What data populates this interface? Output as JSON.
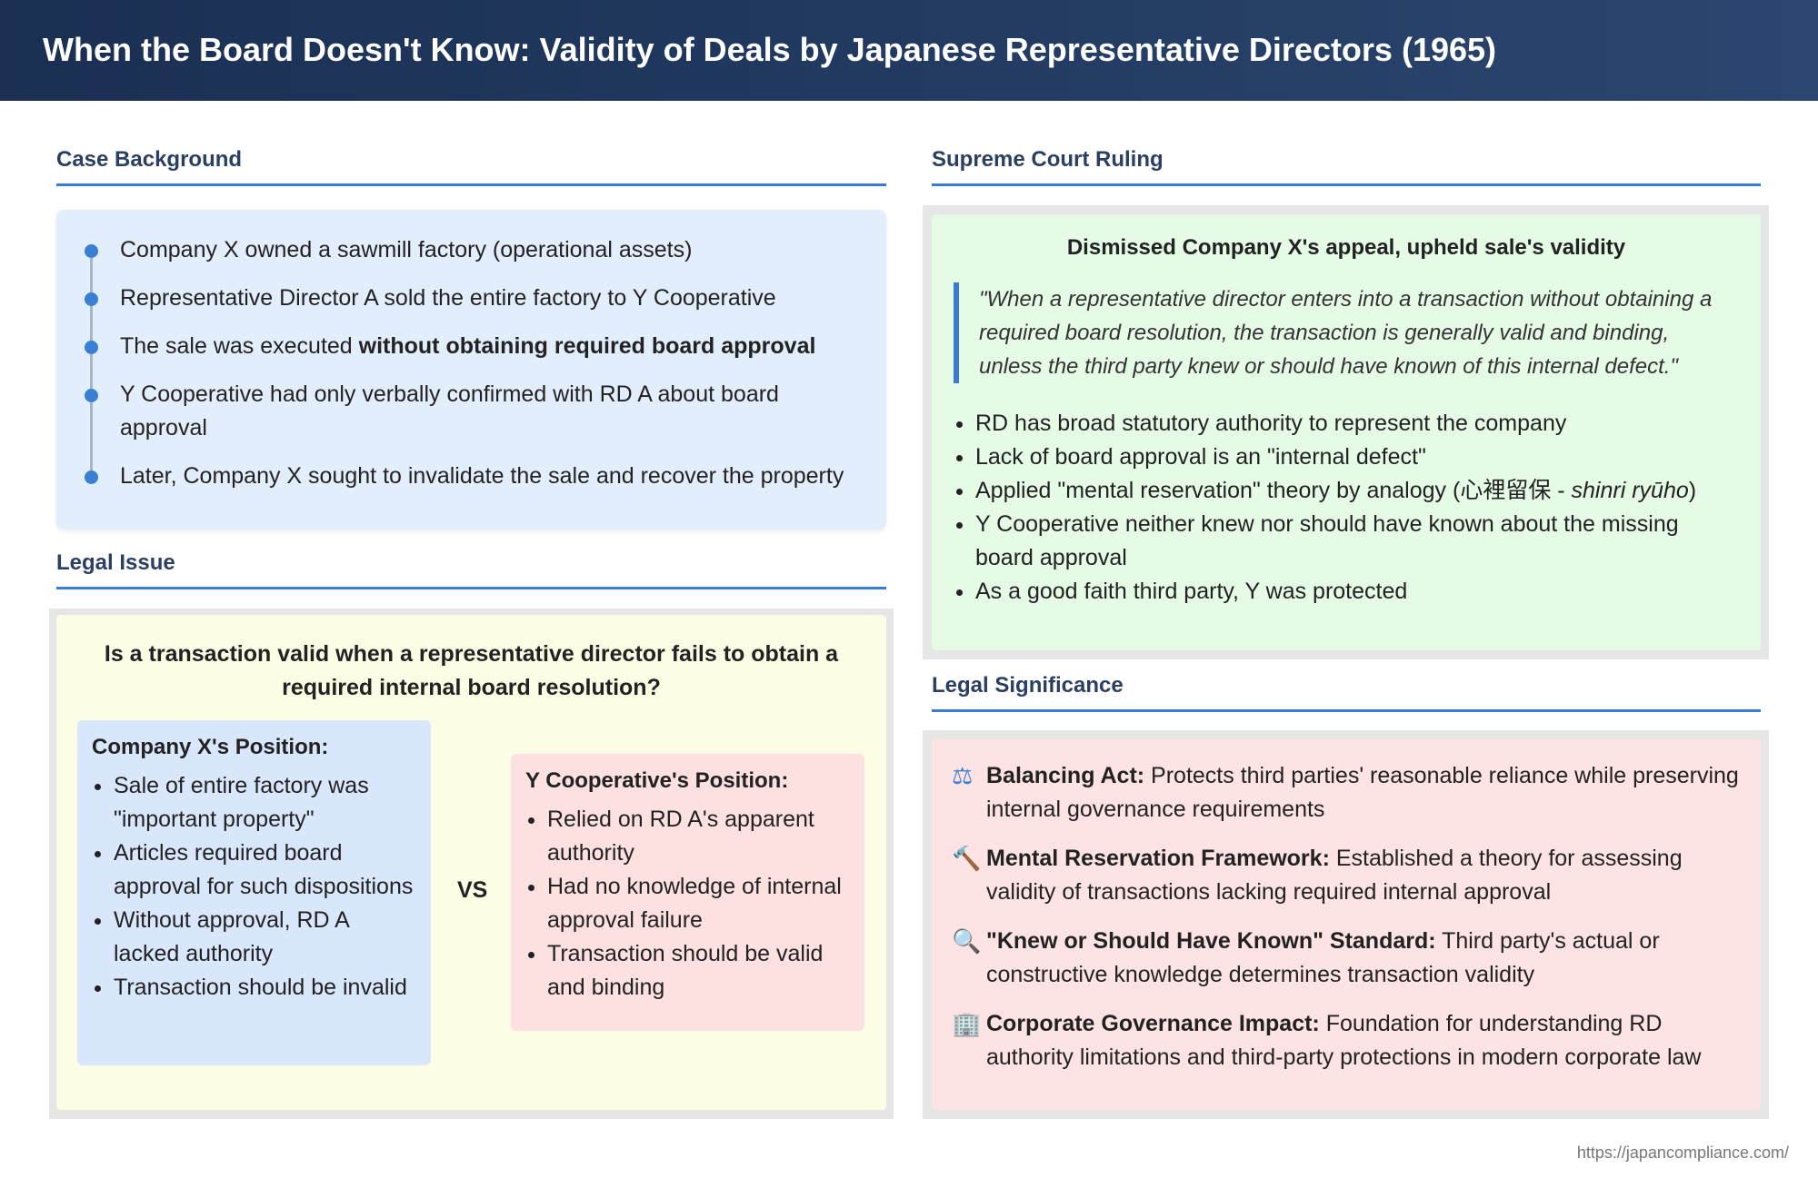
{
  "title": "When the Board Doesn't Know: Validity of Deals by Japanese Representative Directors (1965)",
  "background": {
    "heading": "Case Background",
    "items": [
      {
        "text": "Company X owned a sawmill factory (operational assets)"
      },
      {
        "text": "Representative Director A sold the entire factory to Y Cooperative"
      },
      {
        "pre": "The sale was executed ",
        "bold": "without obtaining required board approval"
      },
      {
        "text": "Y Cooperative had only verbally confirmed with RD A about board approval"
      },
      {
        "text": "Later, Company X sought to invalidate the sale and recover the property"
      }
    ]
  },
  "issue": {
    "heading": "Legal Issue",
    "question": "Is a transaction valid when a representative director fails to obtain a required internal board resolution?",
    "x": {
      "title": "Company X's Position:",
      "items": [
        "Sale of entire factory was \"important property\"",
        "Articles required board approval for such dispositions",
        "Without approval, RD A lacked authority",
        "Transaction should be invalid"
      ]
    },
    "vs": "VS",
    "y": {
      "title": "Y Cooperative's Position:",
      "items": [
        "Relied on RD A's apparent authority",
        "Had no knowledge of internal approval failure",
        "Transaction should be valid and binding"
      ]
    }
  },
  "ruling": {
    "heading": "Supreme Court Ruling",
    "title": "Dismissed Company X's appeal, upheld sale's validity",
    "quote": "\"When a representative director enters into a transaction without obtaining a required board resolution, the transaction is generally valid and binding, unless the third party knew or should have known of this internal defect.\"",
    "items": [
      "RD has broad statutory authority to represent the company",
      "Lack of board approval is an \"internal defect\"",
      "Y Cooperative neither knew nor should have known about the missing board approval",
      "As a good faith third party, Y was protected"
    ],
    "analogy_pre": "Applied \"mental reservation\" theory by analogy (心裡留保 - ",
    "analogy_it": "shinri ryūho",
    "analogy_post": ")"
  },
  "significance": {
    "heading": "Legal Significance",
    "items": [
      {
        "icon": "scale-icon",
        "glyph": "⚖",
        "bold": "Balancing Act:",
        "text": " Protects third parties' reasonable reliance while preserving internal governance requirements"
      },
      {
        "icon": "gavel-icon",
        "glyph": "🔨",
        "bold": "Mental Reservation Framework:",
        "text": " Established a theory for assessing validity of transactions lacking required internal approval"
      },
      {
        "icon": "search-icon",
        "glyph": "🔍",
        "bold": "\"Knew or Should Have Known\" Standard:",
        "text": " Third party's actual or constructive knowledge determines transaction validity"
      },
      {
        "icon": "building-icon",
        "glyph": "🏢",
        "bold": "Corporate Governance Impact:",
        "text": " Foundation for understanding RD authority limitations and third-party protections in modern corporate law"
      }
    ]
  },
  "footer": "https://japancompliance.com/",
  "colors": {
    "accent": "#3a7bd5",
    "header": "#1e3458"
  }
}
